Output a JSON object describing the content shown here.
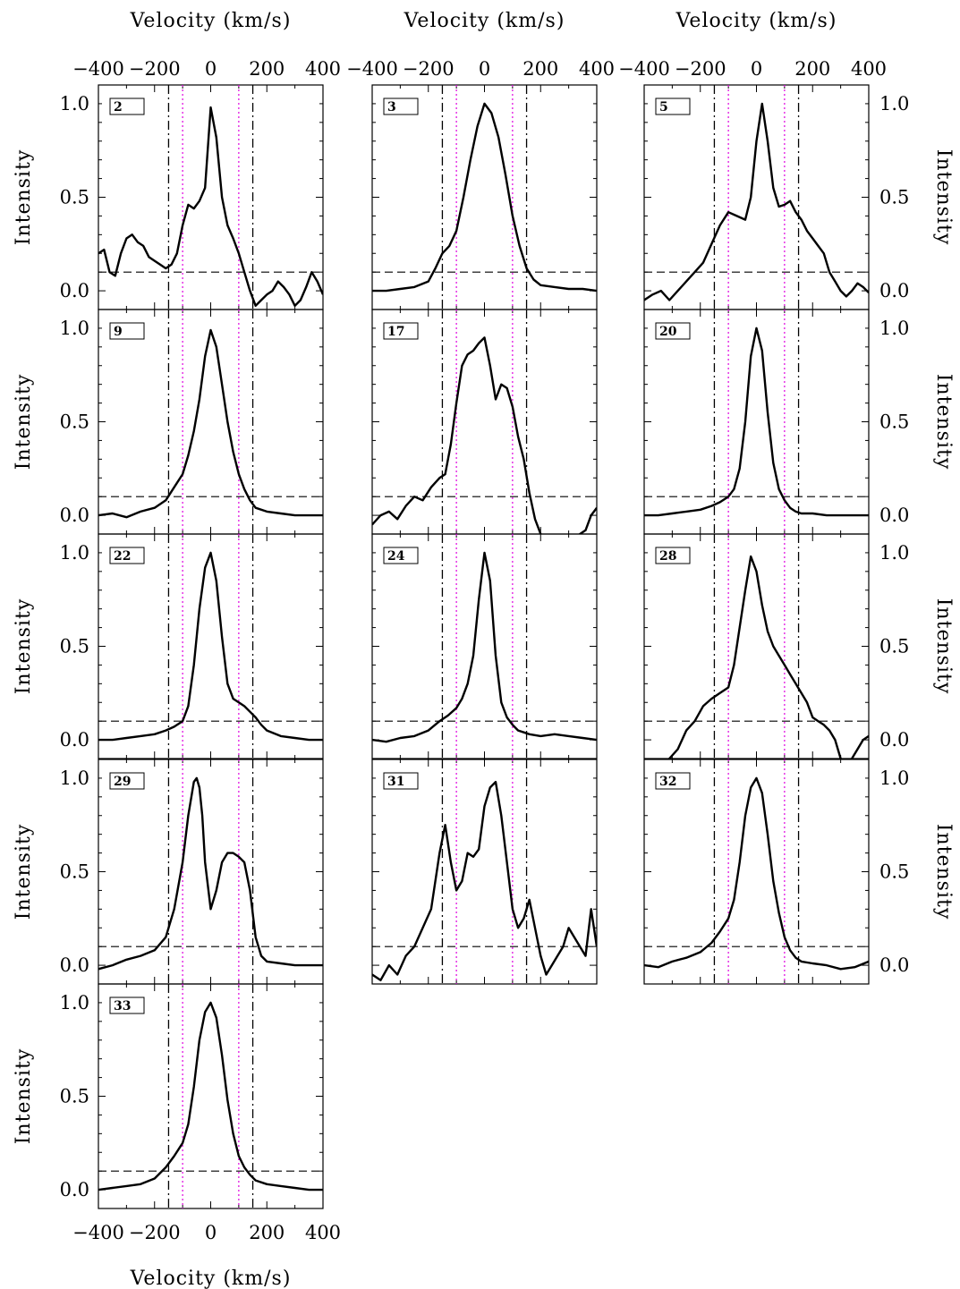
{
  "figure": {
    "xlabel": "Velocity (km/s)",
    "ylabel": "Intensity"
  },
  "style": {
    "line_color": "#000000",
    "continuum_dash_color": "#000000",
    "outer_marker_color": "#000000",
    "inner_marker_color": "#e000e0"
  },
  "chart_data": {
    "type": "line",
    "layout": "grid of 3 columns, 13 panels",
    "x_axis": {
      "label": "Velocity (km/s)",
      "range": [
        -400,
        400
      ],
      "ticks": [
        -400,
        -200,
        0,
        200,
        400
      ],
      "tick_labels": [
        "−400",
        "−200",
        "0",
        "200",
        "400"
      ]
    },
    "y_axis": {
      "label": "Intensity",
      "range": [
        -0.1,
        1.1
      ],
      "ticks": [
        0.0,
        0.5,
        1.0
      ],
      "tick_labels": [
        "0.0",
        "0.5",
        "1.0"
      ]
    },
    "reference_lines": {
      "horizontal_dashed_y": 0.1,
      "outer_dash_dot_x": [
        -150,
        150
      ],
      "inner_dotted_magenta_x": [
        -100,
        100
      ]
    },
    "panels": [
      {
        "id": "2",
        "x": [
          -400,
          -380,
          -360,
          -340,
          -320,
          -300,
          -280,
          -260,
          -240,
          -220,
          -200,
          -180,
          -160,
          -140,
          -120,
          -100,
          -80,
          -60,
          -40,
          -20,
          0,
          20,
          40,
          60,
          80,
          100,
          120,
          140,
          160,
          180,
          200,
          220,
          240,
          260,
          280,
          300,
          320,
          340,
          360,
          380,
          400
        ],
        "y": [
          0.2,
          0.22,
          0.1,
          0.08,
          0.2,
          0.28,
          0.3,
          0.26,
          0.24,
          0.18,
          0.16,
          0.14,
          0.12,
          0.14,
          0.2,
          0.35,
          0.46,
          0.44,
          0.48,
          0.55,
          0.98,
          0.82,
          0.5,
          0.35,
          0.28,
          0.2,
          0.1,
          0.0,
          -0.08,
          -0.05,
          -0.02,
          0.0,
          0.05,
          0.02,
          -0.02,
          -0.08,
          -0.05,
          0.02,
          0.1,
          0.05,
          -0.02
        ]
      },
      {
        "id": "3",
        "x": [
          -400,
          -350,
          -300,
          -250,
          -200,
          -175,
          -150,
          -125,
          -100,
          -75,
          -50,
          -25,
          0,
          25,
          50,
          75,
          100,
          125,
          150,
          175,
          200,
          250,
          300,
          350,
          400
        ],
        "y": [
          0.0,
          0.0,
          0.01,
          0.02,
          0.05,
          0.12,
          0.2,
          0.24,
          0.32,
          0.5,
          0.7,
          0.88,
          1.0,
          0.95,
          0.82,
          0.62,
          0.4,
          0.24,
          0.12,
          0.06,
          0.03,
          0.02,
          0.01,
          0.01,
          0.0
        ]
      },
      {
        "id": "5",
        "x": [
          -400,
          -370,
          -340,
          -310,
          -280,
          -250,
          -220,
          -190,
          -160,
          -130,
          -100,
          -70,
          -40,
          -20,
          0,
          20,
          40,
          60,
          80,
          100,
          120,
          140,
          160,
          180,
          200,
          220,
          240,
          260,
          280,
          300,
          320,
          340,
          360,
          380,
          400
        ],
        "y": [
          -0.05,
          -0.02,
          0.0,
          -0.05,
          0.0,
          0.05,
          0.1,
          0.15,
          0.25,
          0.35,
          0.42,
          0.4,
          0.38,
          0.5,
          0.8,
          1.0,
          0.8,
          0.55,
          0.45,
          0.46,
          0.48,
          0.42,
          0.38,
          0.32,
          0.28,
          0.24,
          0.2,
          0.1,
          0.05,
          0.0,
          -0.03,
          0.0,
          0.04,
          0.02,
          -0.01
        ]
      },
      {
        "id": "9",
        "x": [
          -400,
          -350,
          -300,
          -250,
          -200,
          -160,
          -130,
          -100,
          -80,
          -60,
          -40,
          -20,
          0,
          20,
          40,
          60,
          80,
          100,
          120,
          140,
          160,
          200,
          250,
          300,
          350,
          400
        ],
        "y": [
          0.0,
          0.01,
          -0.01,
          0.02,
          0.04,
          0.08,
          0.15,
          0.22,
          0.32,
          0.45,
          0.62,
          0.85,
          0.99,
          0.9,
          0.7,
          0.5,
          0.34,
          0.22,
          0.14,
          0.08,
          0.04,
          0.02,
          0.01,
          0.0,
          0.0,
          0.0
        ]
      },
      {
        "id": "17",
        "x": [
          -400,
          -370,
          -340,
          -310,
          -280,
          -250,
          -220,
          -190,
          -160,
          -140,
          -120,
          -100,
          -80,
          -60,
          -40,
          -20,
          0,
          20,
          40,
          60,
          80,
          100,
          120,
          140,
          160,
          180,
          200,
          220,
          240,
          260,
          280,
          300,
          320,
          340,
          360,
          380,
          400
        ],
        "y": [
          -0.05,
          0.0,
          0.02,
          -0.02,
          0.05,
          0.1,
          0.08,
          0.15,
          0.2,
          0.22,
          0.38,
          0.6,
          0.8,
          0.86,
          0.88,
          0.92,
          0.95,
          0.8,
          0.62,
          0.7,
          0.68,
          0.58,
          0.42,
          0.3,
          0.12,
          -0.02,
          -0.1,
          -0.15,
          -0.2,
          -0.2,
          -0.18,
          -0.15,
          -0.12,
          -0.1,
          -0.08,
          0.0,
          0.04
        ]
      },
      {
        "id": "20",
        "x": [
          -400,
          -350,
          -300,
          -250,
          -200,
          -160,
          -130,
          -100,
          -80,
          -60,
          -40,
          -20,
          0,
          20,
          40,
          60,
          80,
          100,
          120,
          140,
          160,
          200,
          250,
          300,
          350,
          400
        ],
        "y": [
          0.0,
          0.0,
          0.01,
          0.02,
          0.03,
          0.05,
          0.07,
          0.1,
          0.14,
          0.25,
          0.5,
          0.85,
          1.0,
          0.88,
          0.55,
          0.28,
          0.14,
          0.08,
          0.04,
          0.02,
          0.01,
          0.01,
          0.0,
          0.0,
          0.0,
          0.0
        ]
      },
      {
        "id": "22",
        "x": [
          -400,
          -350,
          -300,
          -250,
          -200,
          -160,
          -130,
          -100,
          -80,
          -60,
          -40,
          -20,
          0,
          20,
          40,
          60,
          80,
          100,
          120,
          140,
          160,
          180,
          200,
          250,
          300,
          350,
          400
        ],
        "y": [
          0.0,
          0.0,
          0.01,
          0.02,
          0.03,
          0.05,
          0.07,
          0.1,
          0.18,
          0.4,
          0.7,
          0.92,
          1.0,
          0.85,
          0.55,
          0.3,
          0.22,
          0.2,
          0.18,
          0.15,
          0.12,
          0.08,
          0.05,
          0.02,
          0.01,
          0.0,
          0.0
        ]
      },
      {
        "id": "24",
        "x": [
          -400,
          -350,
          -300,
          -250,
          -200,
          -160,
          -130,
          -100,
          -80,
          -60,
          -40,
          -20,
          0,
          20,
          40,
          60,
          80,
          100,
          120,
          140,
          160,
          200,
          250,
          300,
          350,
          400
        ],
        "y": [
          0.0,
          -0.01,
          0.01,
          0.02,
          0.05,
          0.1,
          0.13,
          0.17,
          0.22,
          0.3,
          0.45,
          0.75,
          1.0,
          0.85,
          0.45,
          0.2,
          0.12,
          0.08,
          0.05,
          0.04,
          0.03,
          0.02,
          0.03,
          0.02,
          0.01,
          0.0
        ]
      },
      {
        "id": "28",
        "x": [
          -400,
          -380,
          -360,
          -340,
          -310,
          -280,
          -250,
          -220,
          -190,
          -160,
          -130,
          -100,
          -80,
          -60,
          -40,
          -20,
          0,
          20,
          40,
          60,
          80,
          100,
          120,
          140,
          160,
          180,
          200,
          220,
          240,
          260,
          280,
          300,
          320,
          340,
          360,
          380,
          400
        ],
        "y": [
          -0.15,
          -0.18,
          -0.2,
          -0.15,
          -0.1,
          -0.05,
          0.05,
          0.1,
          0.18,
          0.22,
          0.25,
          0.28,
          0.4,
          0.6,
          0.8,
          0.98,
          0.9,
          0.72,
          0.58,
          0.5,
          0.45,
          0.4,
          0.35,
          0.3,
          0.25,
          0.2,
          0.12,
          0.1,
          0.08,
          0.05,
          0.0,
          -0.1,
          -0.15,
          -0.1,
          -0.05,
          0.0,
          0.02
        ]
      },
      {
        "id": "29",
        "x": [
          -400,
          -350,
          -300,
          -250,
          -200,
          -160,
          -130,
          -100,
          -80,
          -60,
          -50,
          -40,
          -30,
          -20,
          0,
          20,
          40,
          60,
          80,
          100,
          120,
          140,
          160,
          180,
          200,
          250,
          300,
          350,
          400
        ],
        "y": [
          -0.02,
          0.0,
          0.03,
          0.05,
          0.08,
          0.15,
          0.3,
          0.55,
          0.8,
          0.98,
          1.0,
          0.95,
          0.8,
          0.55,
          0.3,
          0.4,
          0.55,
          0.6,
          0.6,
          0.58,
          0.55,
          0.4,
          0.15,
          0.05,
          0.02,
          0.01,
          0.0,
          0.0,
          0.0
        ]
      },
      {
        "id": "31",
        "x": [
          -400,
          -370,
          -340,
          -310,
          -280,
          -250,
          -220,
          -190,
          -160,
          -140,
          -120,
          -100,
          -80,
          -60,
          -40,
          -20,
          0,
          20,
          40,
          60,
          80,
          100,
          120,
          140,
          160,
          180,
          200,
          220,
          240,
          260,
          280,
          300,
          320,
          340,
          360,
          380,
          400
        ],
        "y": [
          -0.05,
          -0.08,
          0.0,
          -0.05,
          0.05,
          0.1,
          0.2,
          0.3,
          0.6,
          0.75,
          0.55,
          0.4,
          0.45,
          0.6,
          0.58,
          0.62,
          0.85,
          0.95,
          0.98,
          0.8,
          0.55,
          0.3,
          0.2,
          0.25,
          0.35,
          0.2,
          0.05,
          -0.05,
          0.0,
          0.05,
          0.1,
          0.2,
          0.15,
          0.1,
          0.05,
          0.3,
          0.1
        ]
      },
      {
        "id": "32",
        "x": [
          -400,
          -350,
          -300,
          -250,
          -200,
          -160,
          -130,
          -100,
          -80,
          -60,
          -40,
          -20,
          0,
          20,
          40,
          60,
          80,
          100,
          120,
          140,
          160,
          200,
          250,
          300,
          350,
          400
        ],
        "y": [
          0.0,
          -0.01,
          0.02,
          0.04,
          0.07,
          0.12,
          0.18,
          0.25,
          0.35,
          0.55,
          0.8,
          0.95,
          1.0,
          0.92,
          0.7,
          0.45,
          0.28,
          0.15,
          0.08,
          0.04,
          0.02,
          0.01,
          0.0,
          -0.02,
          -0.01,
          0.02
        ]
      },
      {
        "id": "33",
        "x": [
          -400,
          -350,
          -300,
          -250,
          -200,
          -160,
          -130,
          -100,
          -80,
          -60,
          -40,
          -20,
          0,
          20,
          40,
          60,
          80,
          100,
          120,
          140,
          160,
          200,
          250,
          300,
          350,
          400
        ],
        "y": [
          0.0,
          0.01,
          0.02,
          0.03,
          0.06,
          0.12,
          0.18,
          0.25,
          0.35,
          0.55,
          0.8,
          0.95,
          1.0,
          0.92,
          0.72,
          0.48,
          0.3,
          0.18,
          0.12,
          0.08,
          0.05,
          0.03,
          0.02,
          0.01,
          0.0,
          0.0
        ]
      }
    ]
  }
}
